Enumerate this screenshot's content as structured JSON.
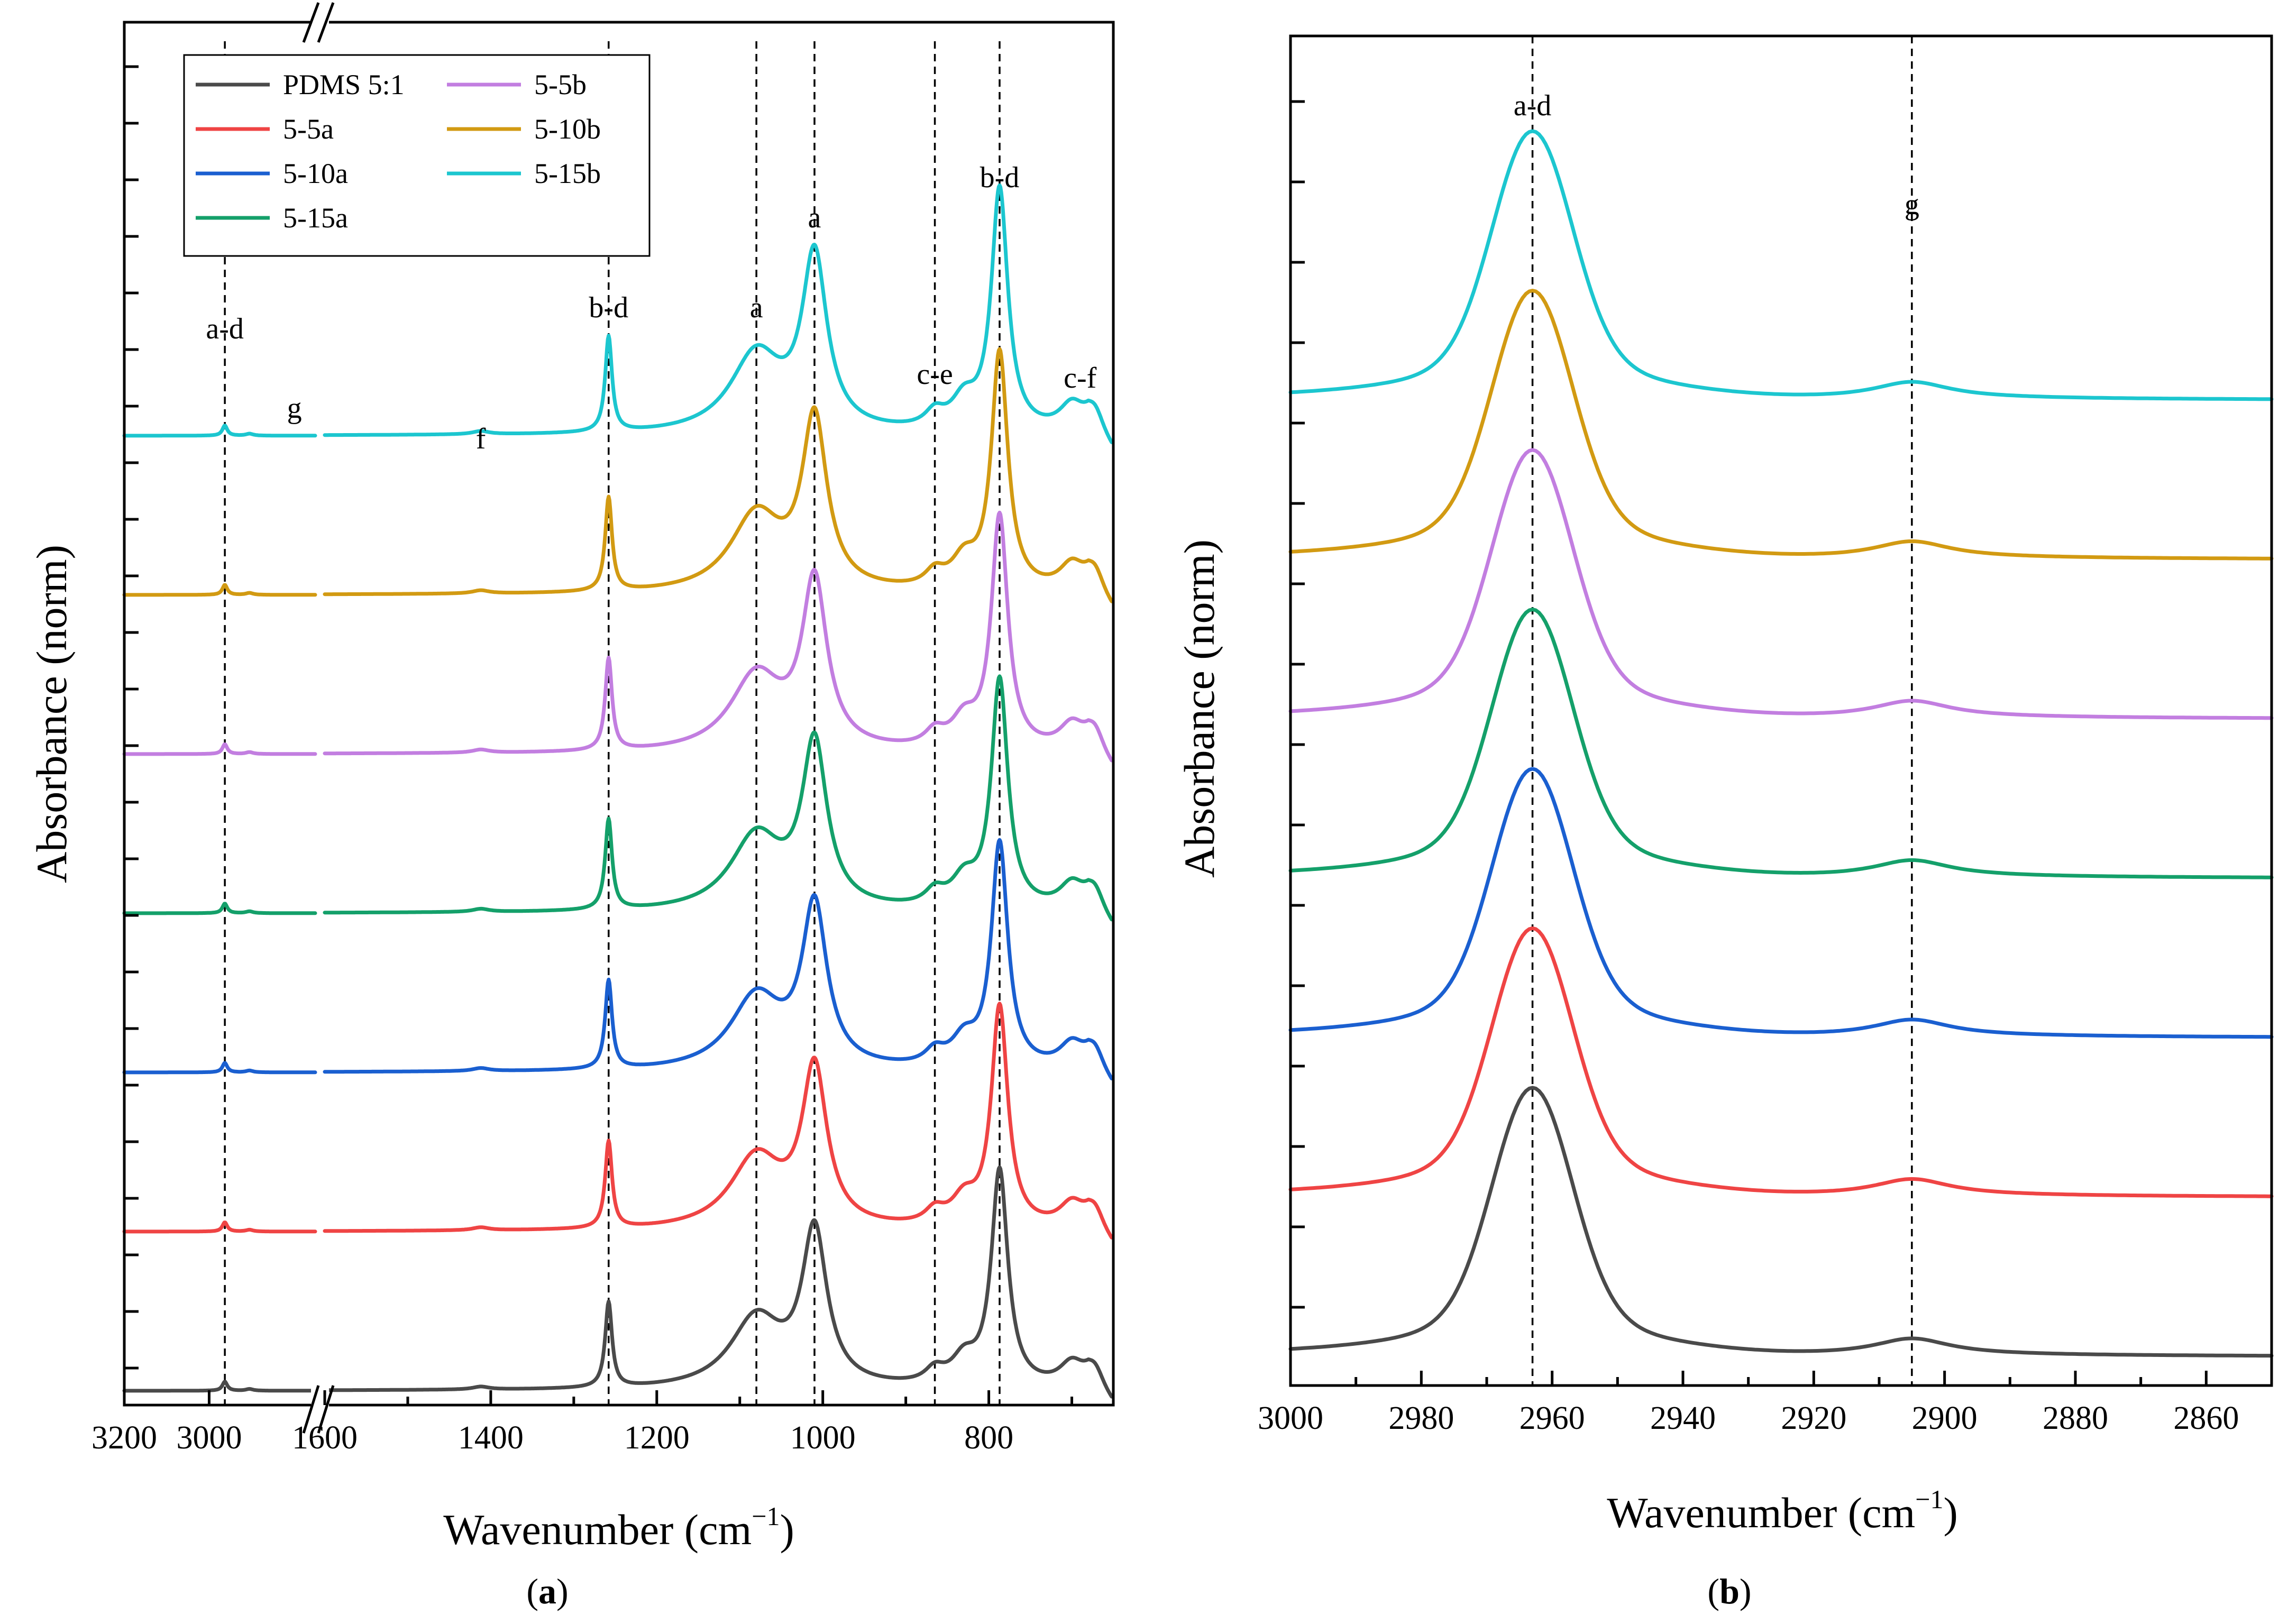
{
  "colors": {
    "PDMS 5:1": "#4a4a4a",
    "5-5a": "#ef4444",
    "5-10a": "#1a5fd0",
    "5-15a": "#14a06a",
    "5-5b": "#c27ee0",
    "5-10b": "#d29a12",
    "5-15b": "#1cc6cf"
  },
  "chart_data": [
    {
      "panel": "a",
      "type": "line",
      "xlabel": "Wavenumber (cm",
      "xlabel_exp": "−1",
      "xlabel_close": ")",
      "ylabel": "Absorbance (norm)",
      "x_break": [
        2750,
        1600
      ],
      "xlim_left_segment": [
        3200,
        2750
      ],
      "xlim_right_segment": [
        1600,
        650
      ],
      "x_tick_labels": [
        "3200",
        "3000",
        "1600",
        "1400",
        "1200",
        "1000",
        "800"
      ],
      "x_ticks": [
        3200,
        3000,
        1600,
        1400,
        1200,
        1000,
        800
      ],
      "break_mark": "//",
      "legend": [
        "PDMS 5:1",
        "5-5a",
        "5-10a",
        "5-15a",
        "5-5b",
        "5-10b",
        "5-15b"
      ],
      "series_order_bottom_to_top": [
        "PDMS 5:1",
        "5-5a",
        "5-10a",
        "5-15a",
        "5-5b",
        "5-10b",
        "5-15b"
      ],
      "series_offset_step": 1.4,
      "peaks": [
        {
          "x": 2963,
          "height": 0.08,
          "width": 7
        },
        {
          "x": 2905,
          "height": 0.015,
          "width": 10
        },
        {
          "x": 1412,
          "height": 0.025,
          "width": 12
        },
        {
          "x": 1258,
          "height": 0.75,
          "width": 5
        },
        {
          "x": 1080,
          "height": 0.62,
          "width": 38
        },
        {
          "x": 1010,
          "height": 1.35,
          "width": 18
        },
        {
          "x": 865,
          "height": 0.12,
          "width": 14
        },
        {
          "x": 830,
          "height": 0.22,
          "width": 18
        },
        {
          "x": 787,
          "height": 1.9,
          "width": 12
        },
        {
          "x": 700,
          "height": 0.2,
          "width": 18
        },
        {
          "x": 672,
          "height": 0.2,
          "width": 14
        }
      ],
      "reference_lines": [
        2963,
        1258,
        1080,
        1010,
        865,
        787
      ],
      "annotations": [
        {
          "text": "a-d",
          "x": 2963
        },
        {
          "text": "g",
          "x": 2905
        },
        {
          "text": "f",
          "x": 1412
        },
        {
          "text": "b-d",
          "x": 1258
        },
        {
          "text": "a",
          "x": 1080
        },
        {
          "text": "a",
          "x": 1010
        },
        {
          "text": "c-e",
          "x": 865
        },
        {
          "text": "b-d",
          "x": 787
        },
        {
          "text": "c-f",
          "x": 690
        }
      ],
      "panel_label": "a"
    },
    {
      "panel": "b",
      "type": "line",
      "xlabel": "Wavenumber (cm",
      "xlabel_exp": "−1",
      "xlabel_close": ")",
      "ylabel": "Absorbance (norm)",
      "xlim": [
        3000,
        2850
      ],
      "x_ticks": [
        3000,
        2980,
        2960,
        2940,
        2920,
        2900,
        2880,
        2860
      ],
      "x_tick_labels": [
        "3000",
        "2980",
        "2960",
        "2940",
        "2920",
        "2900",
        "2880",
        "2860"
      ],
      "series_order_bottom_to_top": [
        "PDMS 5:1",
        "5-5a",
        "5-10a",
        "5-15a",
        "5-5b",
        "5-10b",
        "5-15b"
      ],
      "series_offset_step": 1.0,
      "peak_main": {
        "x": 2963,
        "height": 1.35,
        "width": 7
      },
      "peak_minor": {
        "x": 2905,
        "height": 0.1,
        "width": 7
      },
      "reference_lines": [
        2963,
        2905
      ],
      "annotations": [
        {
          "text": "a-d",
          "x": 2963
        },
        {
          "text": "g",
          "x": 2905
        }
      ],
      "panel_label": "b"
    }
  ]
}
